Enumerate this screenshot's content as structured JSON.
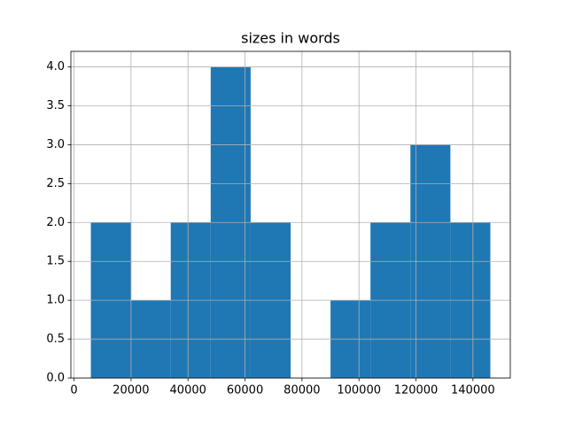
{
  "chart_data": {
    "type": "histogram",
    "title": "sizes in words",
    "bins": [
      5900,
      19920,
      33940,
      47960,
      61980,
      76000,
      90020,
      104040,
      118060,
      132080,
      146100
    ],
    "counts": [
      2,
      1,
      2,
      4,
      2,
      0,
      1,
      2,
      3,
      2
    ],
    "color": "#1f77b4",
    "xlim": [
      -1110,
      153110
    ],
    "xticks": [
      0,
      20000,
      40000,
      60000,
      80000,
      100000,
      120000,
      140000
    ],
    "ylim": [
      0,
      4.2
    ],
    "yticks": [
      {
        "value": 0,
        "label": "0.0"
      },
      {
        "value": 0.5,
        "label": "0.5"
      },
      {
        "value": 1,
        "label": "1.0"
      },
      {
        "value": 1.5,
        "label": "1.5"
      },
      {
        "value": 2,
        "label": "2.0"
      },
      {
        "value": 2.5,
        "label": "2.5"
      },
      {
        "value": 3,
        "label": "3.0"
      },
      {
        "value": 3.5,
        "label": "3.5"
      },
      {
        "value": 4,
        "label": "4.0"
      }
    ],
    "grid": true
  }
}
